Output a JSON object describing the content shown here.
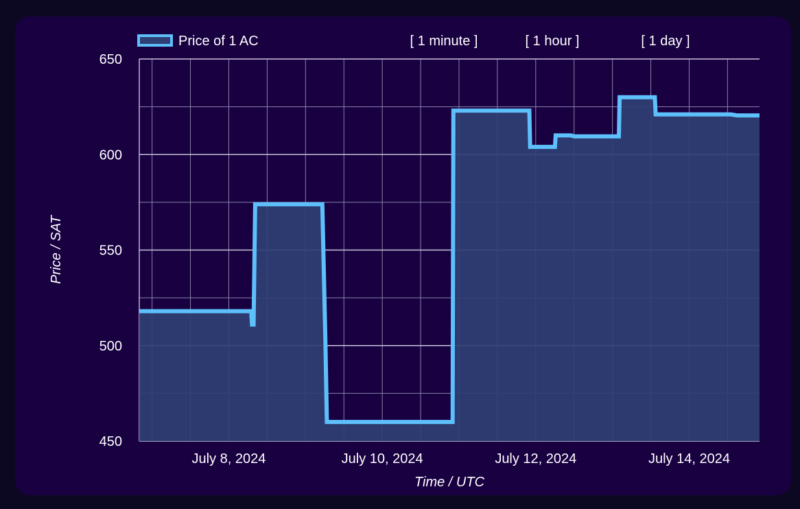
{
  "legend": {
    "label": "Price of 1 AC"
  },
  "range_buttons": [
    "[ 1 minute ]",
    "[ 1 hour ]",
    "[ 1 day ]"
  ],
  "colors": {
    "card_bg": "#180041",
    "line": "#5ec0fb",
    "fill": "#2f3f74",
    "grid": "#8a84a8"
  },
  "chart_data": {
    "type": "area",
    "xlabel": "Time / UTC",
    "ylabel": "Price / SAT",
    "xlim": [
      "2024-07-06T20:00",
      "2024-07-14T22:00"
    ],
    "ylim": [
      450,
      650
    ],
    "yticks": [
      450,
      500,
      550,
      600,
      650
    ],
    "xticks": [
      {
        "date": "2024-07-08",
        "label": "July 8, 2024"
      },
      {
        "date": "2024-07-10",
        "label": "July 10, 2024"
      },
      {
        "date": "2024-07-12",
        "label": "July 12, 2024"
      },
      {
        "date": "2024-07-14",
        "label": "July 14, 2024"
      }
    ],
    "grid": true,
    "legend_position": "top-left",
    "series": [
      {
        "name": "Price of 1 AC",
        "points": [
          [
            "2024-07-06T20:00",
            518
          ],
          [
            "2024-07-08T07:00",
            518
          ],
          [
            "2024-07-08T07:15",
            511
          ],
          [
            "2024-07-08T07:45",
            511
          ],
          [
            "2024-07-08T08:15",
            574
          ],
          [
            "2024-07-09T05:15",
            574
          ],
          [
            "2024-07-09T06:15",
            500
          ],
          [
            "2024-07-09T06:40",
            460
          ],
          [
            "2024-07-10T22:00",
            460
          ],
          [
            "2024-07-10T22:15",
            623
          ],
          [
            "2024-07-11T22:00",
            623
          ],
          [
            "2024-07-11T22:15",
            604
          ],
          [
            "2024-07-12T06:00",
            604
          ],
          [
            "2024-07-12T06:15",
            610
          ],
          [
            "2024-07-12T11:00",
            610
          ],
          [
            "2024-07-12T12:00",
            609.5
          ],
          [
            "2024-07-13T02:00",
            609.5
          ],
          [
            "2024-07-13T02:15",
            630
          ],
          [
            "2024-07-13T13:15",
            630
          ],
          [
            "2024-07-13T13:30",
            621
          ],
          [
            "2024-07-14T13:00",
            621
          ],
          [
            "2024-07-14T15:00",
            620.5
          ],
          [
            "2024-07-14T22:00",
            620.5
          ]
        ]
      }
    ]
  }
}
